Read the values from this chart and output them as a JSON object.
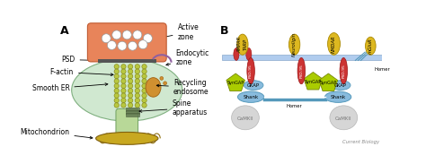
{
  "bg_color": "#ffffff",
  "panel_a_label": "A",
  "panel_b_label": "B",
  "footer": "Current Biology",
  "panel_a": {
    "active_zone_color": "#e8845a",
    "active_zone_outline": "#c05a30",
    "vesicle_color": "#eeeeee",
    "vesicle_outline": "#aaaaaa",
    "psd_color": "#555555",
    "spine_body_color": "#d0e8d0",
    "spine_body_outline": "#80b080",
    "endocytic_color": "#9060a0",
    "factin_color": "#b8c840",
    "factin_outline": "#808010",
    "er_color": "#aaccee",
    "er_outline": "#7799bb",
    "rendo_color": "#d09030",
    "rendo_outline": "#a06010",
    "spine_app_color": "#607850",
    "spine_app_outline": "#405030",
    "mito_color": "#c8a820",
    "mito_outline": "#806010",
    "neck_color": "#b8d898",
    "neck_outline": "#70a060",
    "label_fontsize": 5.5,
    "panel_label_fontsize": 9
  },
  "panel_b": {
    "membrane_color": "#b0ccee",
    "membrane_outline": "#8aaacc",
    "receptor_yellow": "#ddb820",
    "receptor_outline": "#aa8800",
    "psd95_color": "#cc3333",
    "psd95_outline": "#991111",
    "syngap_color": "#aacc00",
    "syngap_outline": "#778800",
    "gkap_color": "#88bbdd",
    "gkap_outline": "#5599bb",
    "shank_color": "#88bbdd",
    "shank_outline": "#5599bb",
    "camkii_color": "#cccccc",
    "camkii_outline": "#aaaaaa",
    "homer_color": "#5599bb",
    "label_fontsize": 5.0,
    "panel_label_fontsize": 9
  }
}
